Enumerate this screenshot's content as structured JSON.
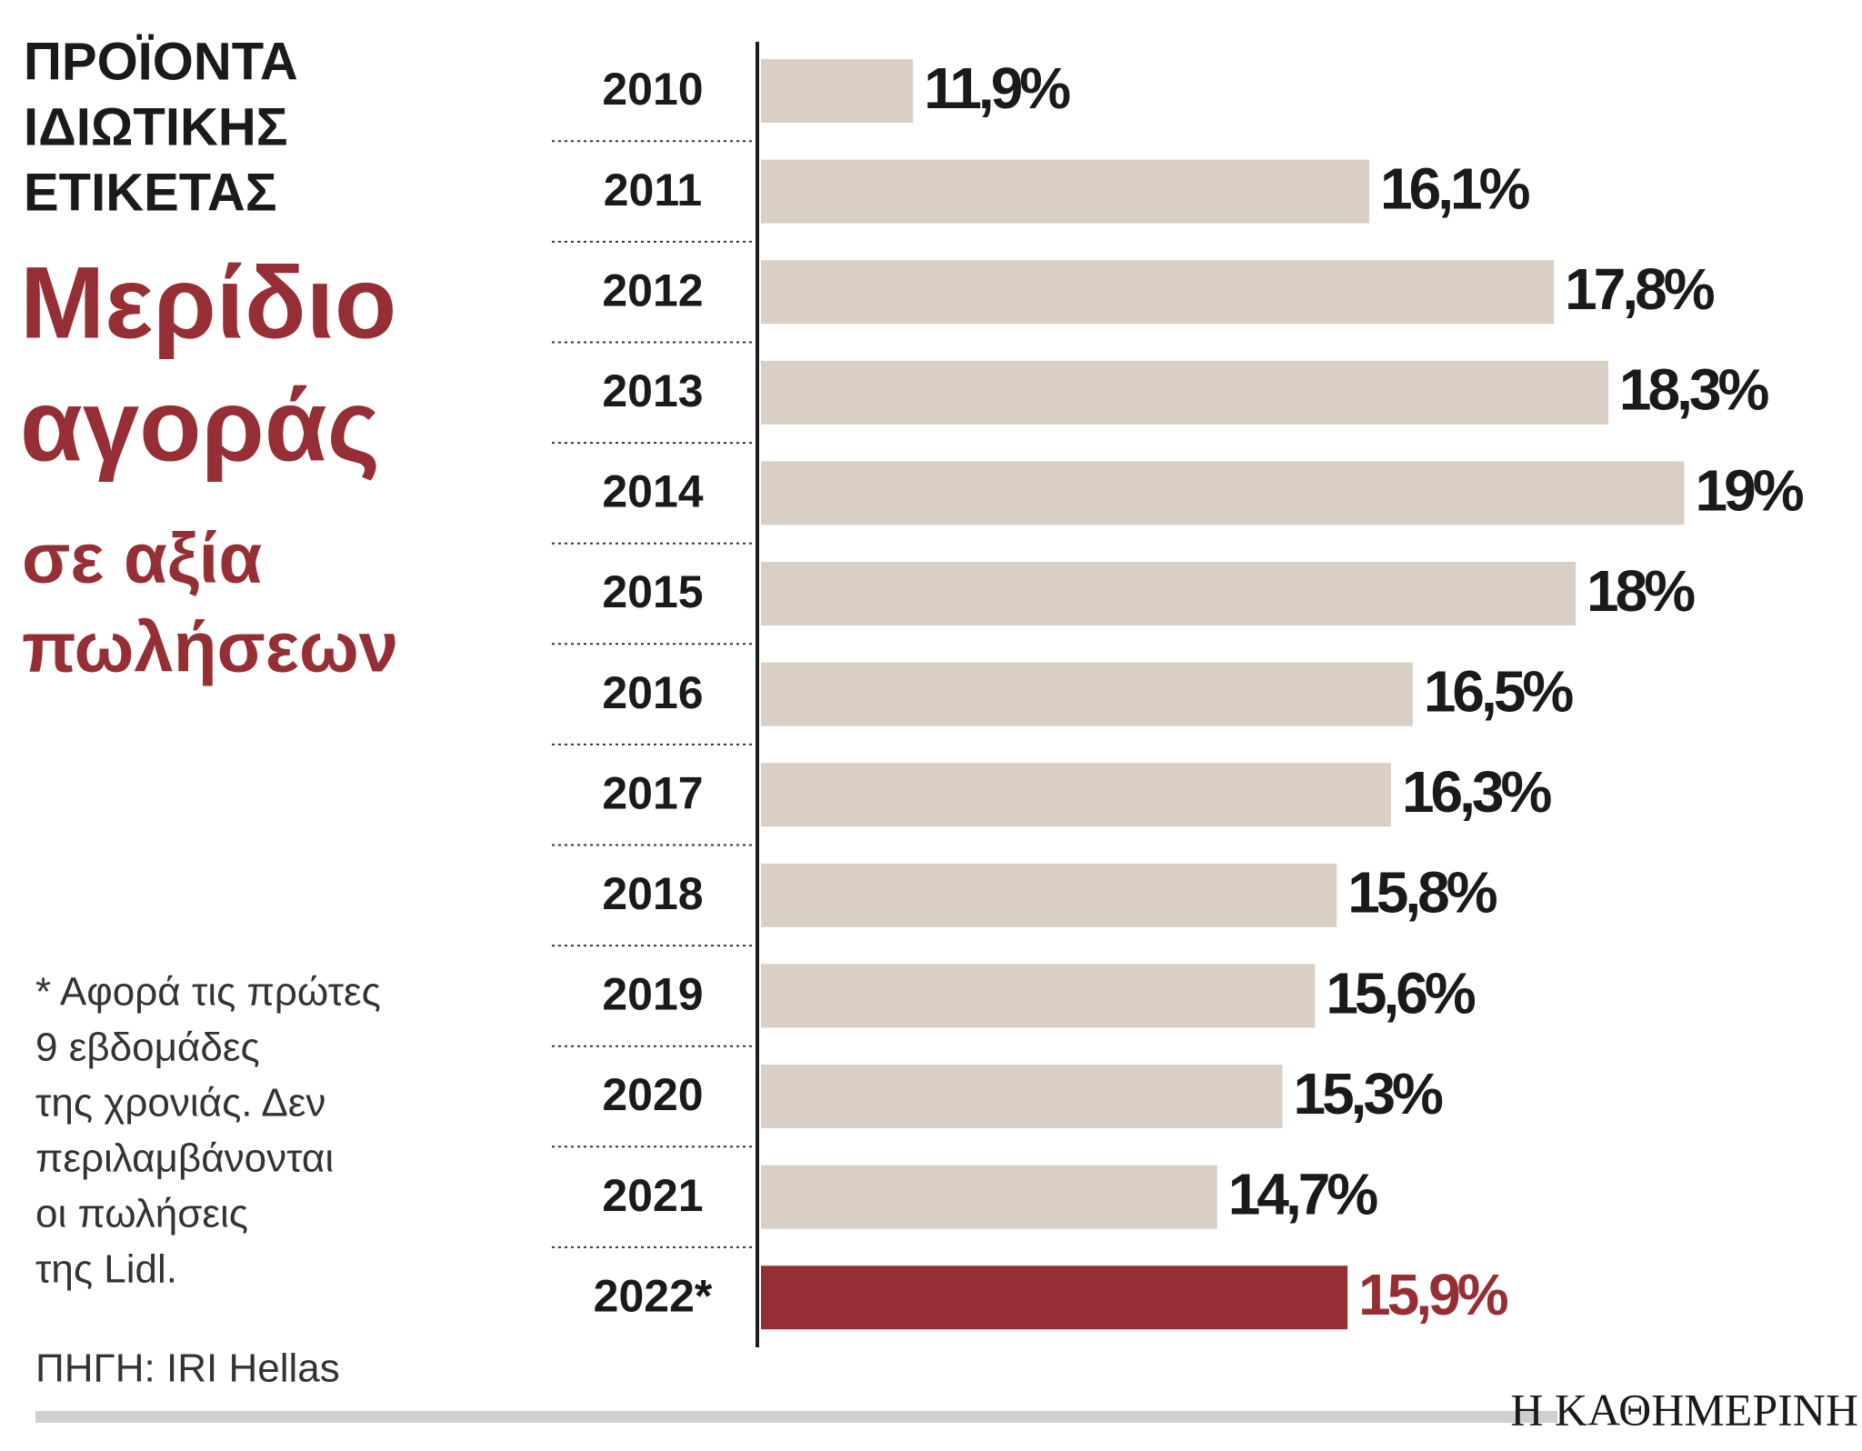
{
  "chart_data": {
    "type": "bar",
    "orientation": "horizontal",
    "title_lines": [
      "ΠΡΟΪΟΝΤΑ",
      "ΙΔΙΩΤΙΚΗΣ",
      "ΕΤΙΚΕΤΑΣ"
    ],
    "subtitle_lines": [
      "Μερίδιο",
      "αγοράς"
    ],
    "subtitle2_lines": [
      "σε αξία",
      "πωλήσεων"
    ],
    "note_lines": [
      "* Αφορά τις πρώτες",
      "9 εβδομάδες",
      "της χρονιάς. Δεν",
      "περιλαμβάνονται",
      "οι πωλήσεις",
      "της Lidl."
    ],
    "source": "ΠΗΓΗ: IRI Hellas",
    "brand": "Η ΚΑΘΗΜΕΡΙΝΗ",
    "categories": [
      "2010",
      "2011",
      "2012",
      "2013",
      "2014",
      "2015",
      "2016",
      "2017",
      "2018",
      "2019",
      "2020",
      "2021",
      "2022*"
    ],
    "values": [
      11.9,
      16.1,
      17.8,
      18.3,
      19,
      18,
      16.5,
      16.3,
      15.8,
      15.6,
      15.3,
      14.7,
      15.9
    ],
    "value_labels": [
      "11,9%",
      "16,1%",
      "17,8%",
      "18,3%",
      "19%",
      "18%",
      "16,5%",
      "16,3%",
      "15,8%",
      "15,6%",
      "15,3%",
      "14,7%",
      "15,9%"
    ],
    "colors": [
      "#d9cfc4",
      "#d9cfc4",
      "#d9cfc4",
      "#d9cfc4",
      "#d9cfc4",
      "#d9cfc4",
      "#d9cfc4",
      "#d9cfc4",
      "#d9cfc4",
      "#d9cfc4",
      "#d9cfc4",
      "#d9cfc4",
      "#962f35"
    ],
    "value_label_colors": [
      "#1a1a1a",
      "#1a1a1a",
      "#1a1a1a",
      "#1a1a1a",
      "#1a1a1a",
      "#1a1a1a",
      "#1a1a1a",
      "#1a1a1a",
      "#1a1a1a",
      "#1a1a1a",
      "#1a1a1a",
      "#1a1a1a",
      "#962f35"
    ],
    "xlim": [
      10.5,
      20
    ]
  }
}
